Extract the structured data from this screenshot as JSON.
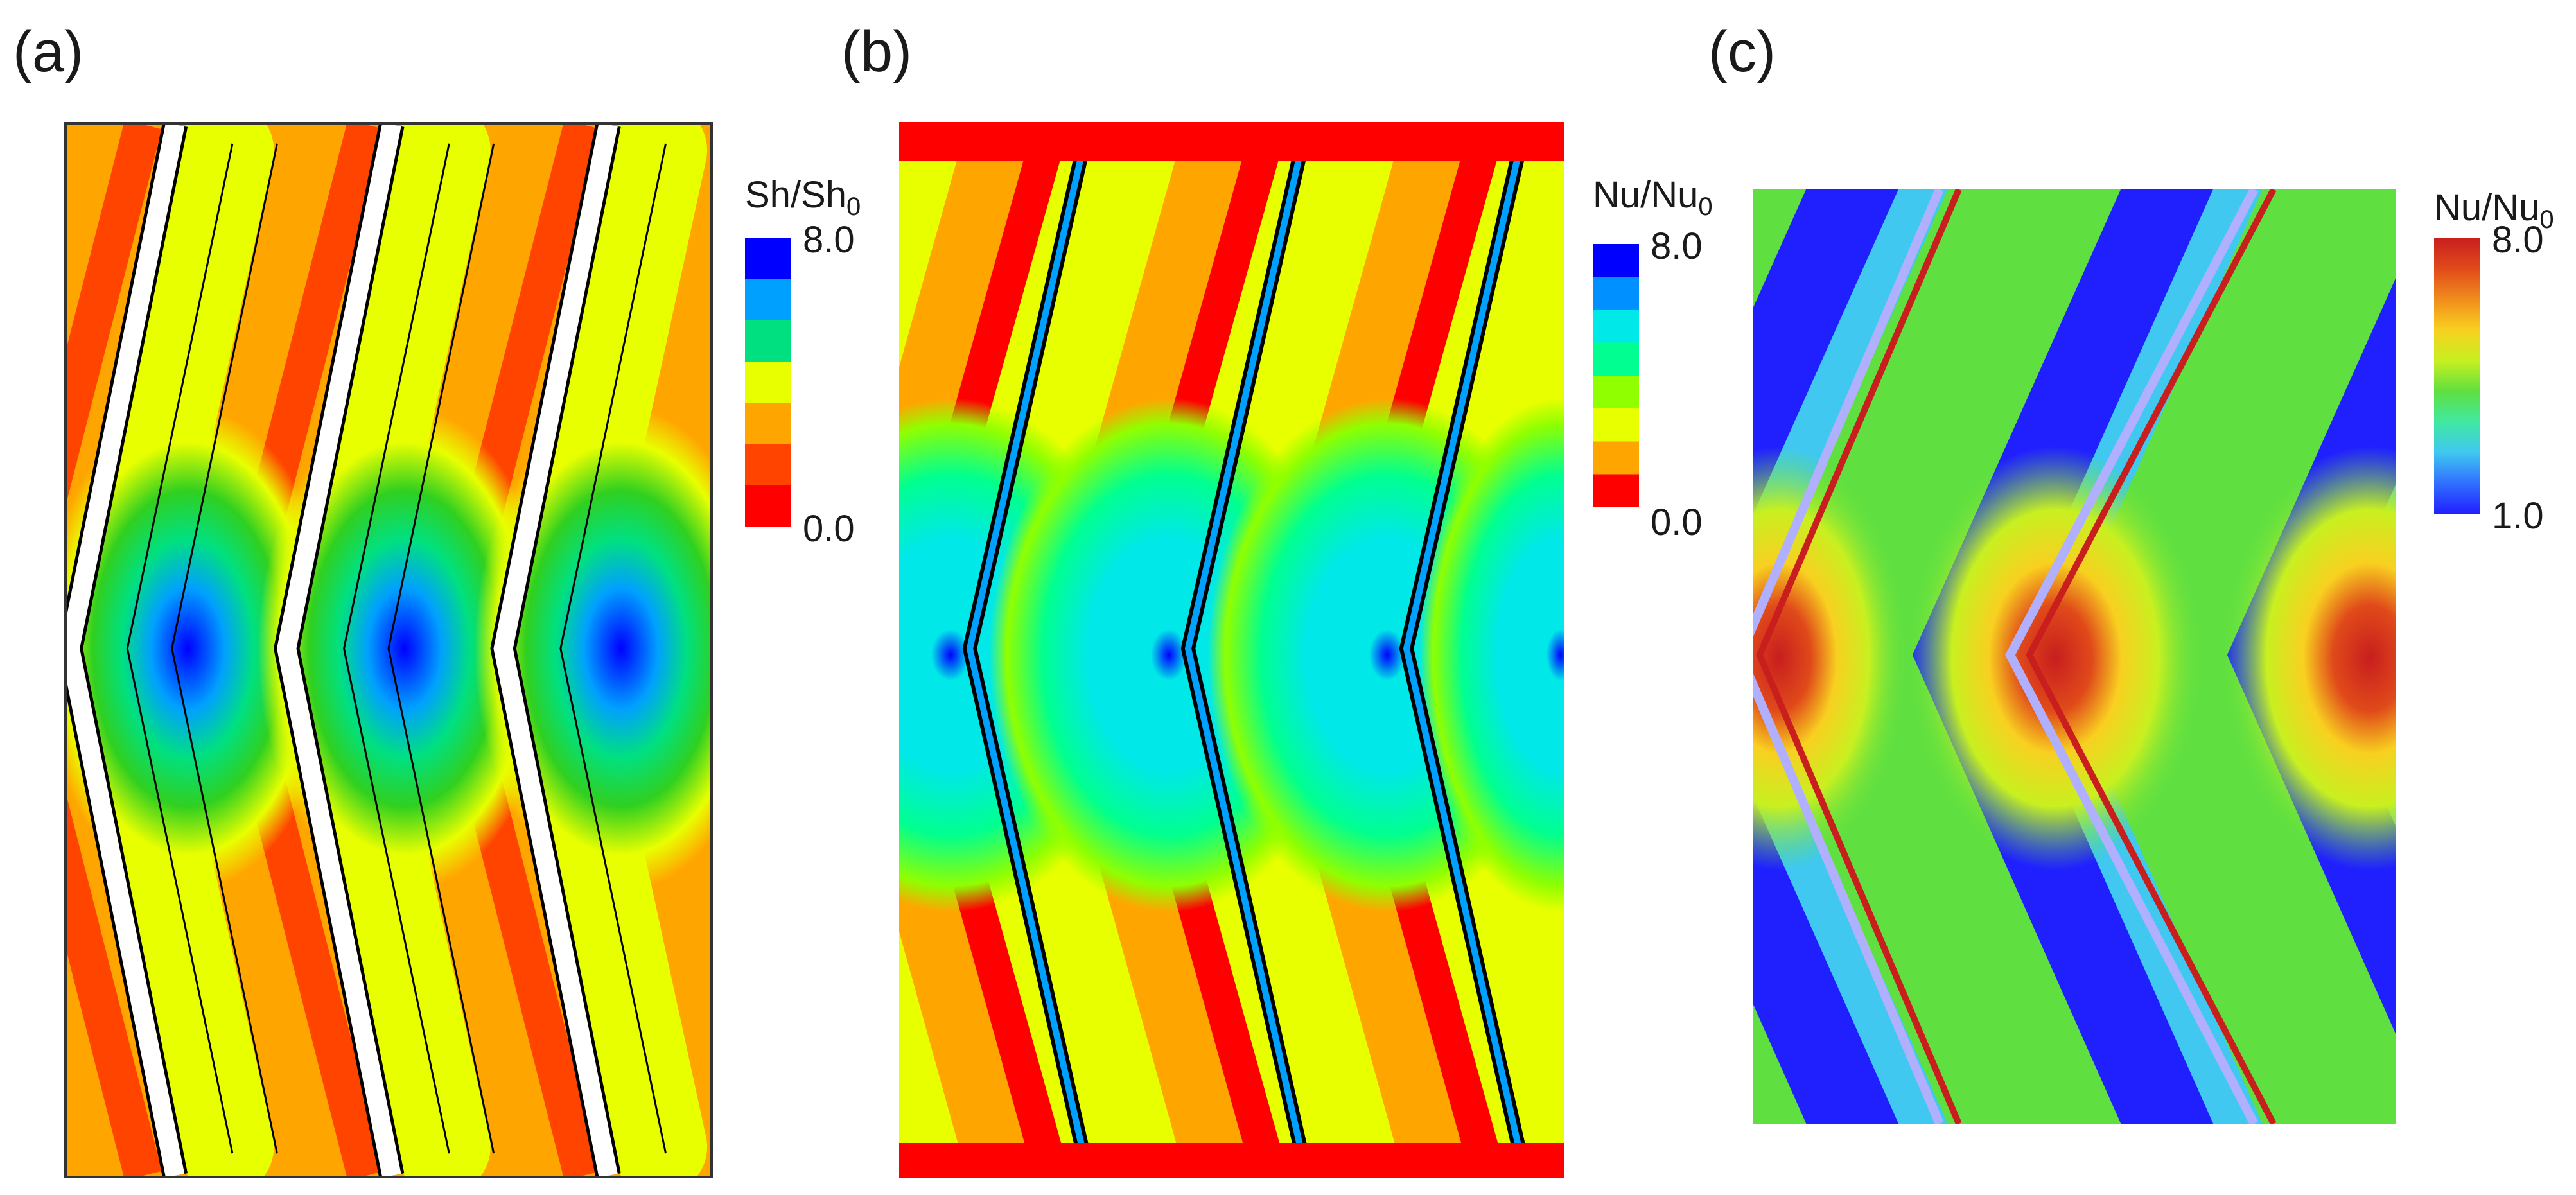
{
  "panels": {
    "a": {
      "label": "(a)"
    },
    "b": {
      "label": "(b)"
    },
    "c": {
      "label": "(c)"
    }
  },
  "colorbars": {
    "a": {
      "title_main": "Sh/Sh",
      "title_sub": "0",
      "max": "8.0",
      "min": "0.0",
      "colors": [
        "#0000ff",
        "#00a0ff",
        "#00e080",
        "#e8ff00",
        "#ffa500",
        "#ff4400",
        "#ff0000"
      ]
    },
    "b": {
      "title_main": "Nu/Nu",
      "title_sub": "0",
      "max": "8.0",
      "min": "0.0",
      "colors": [
        "#0000ff",
        "#0090ff",
        "#00e8e8",
        "#00ff90",
        "#90ff00",
        "#e8ff00",
        "#ffa500",
        "#ff0000"
      ]
    },
    "c": {
      "title_main": "Nu/Nu",
      "title_sub": "0",
      "max": "8.0",
      "min": "1.0",
      "colors": [
        "#c81e1e",
        "#e04a1a",
        "#f08c1c",
        "#f8d020",
        "#c8f020",
        "#60e040",
        "#40e8a0",
        "#40c8f0",
        "#3070ff",
        "#2020ff"
      ]
    }
  }
}
